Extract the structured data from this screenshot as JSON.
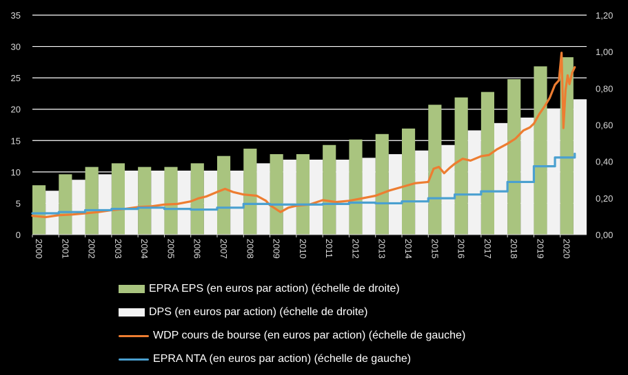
{
  "chart_data": {
    "type": "bar",
    "title": "",
    "x_ticks": [
      "2000",
      "2001",
      "2002",
      "2003",
      "2004",
      "2005",
      "2006",
      "2007",
      "2008",
      "2009",
      "2010",
      "2011",
      "2012",
      "2013",
      "2014",
      "2015",
      "2016",
      "2017",
      "2018",
      "2019",
      "2020"
    ],
    "y_left": {
      "lim": [
        0,
        35
      ],
      "ticks": [
        "0",
        "5",
        "10",
        "15",
        "20",
        "25",
        "30",
        "35"
      ]
    },
    "y_right": {
      "lim": [
        0,
        1.2
      ],
      "ticks": [
        "0,00",
        "0,20",
        "0,40",
        "0,60",
        "0,80",
        "1,00",
        "1,20"
      ]
    },
    "grid": true,
    "legend_position": "bottom",
    "colors": {
      "eps": "#a9c47f",
      "dps": "#f2f2f2",
      "price": "#ed7d31",
      "nta": "#4aa0d0",
      "grid": "#ffffff",
      "axis": "#d9d9d9"
    },
    "series": [
      {
        "name": "EPRA EPS (en euros par action) (échelle de droite)",
        "type": "bar",
        "axis": "right",
        "x": [
          2000,
          2001,
          2002,
          2003,
          2004,
          2005,
          2006,
          2007,
          2008,
          2009,
          2010,
          2011,
          2012,
          2013,
          2014,
          2015,
          2016,
          2017,
          2018,
          2019,
          2020
        ],
        "values": [
          0.27,
          0.33,
          0.37,
          0.39,
          0.37,
          0.37,
          0.39,
          0.43,
          0.47,
          0.44,
          0.44,
          0.49,
          0.52,
          0.55,
          0.58,
          0.71,
          0.75,
          0.78,
          0.85,
          0.92,
          0.97
        ]
      },
      {
        "name": "DPS (en euros par action) (échelle de droite)",
        "type": "bar",
        "axis": "right",
        "x": [
          2000,
          2001,
          2002,
          2003,
          2004,
          2005,
          2006,
          2007,
          2008,
          2009,
          2010,
          2011,
          2012,
          2013,
          2014,
          2015,
          2016,
          2017,
          2018,
          2019,
          2020
        ],
        "values": [
          0.24,
          0.3,
          0.33,
          0.35,
          0.35,
          0.35,
          0.35,
          0.35,
          0.39,
          0.41,
          0.41,
          0.41,
          0.42,
          0.44,
          0.46,
          0.49,
          0.57,
          0.61,
          0.64,
          0.69,
          0.74
        ]
      },
      {
        "name": "WDP cours de bourse (en euros par action) (échelle de gauche)",
        "type": "line",
        "axis": "left",
        "x": [
          2000.0,
          2000.5,
          2001.0,
          2001.5,
          2002.0,
          2002.5,
          2003.0,
          2003.5,
          2004.0,
          2004.5,
          2005.0,
          2005.5,
          2006.0,
          2006.3,
          2006.6,
          2007.0,
          2007.3,
          2007.6,
          2008.0,
          2008.5,
          2008.85,
          2009.0,
          2009.15,
          2009.4,
          2009.7,
          2010.0,
          2010.5,
          2011.0,
          2011.5,
          2012.0,
          2012.5,
          2013.0,
          2013.5,
          2014.0,
          2014.5,
          2015.0,
          2015.2,
          2015.4,
          2015.6,
          2015.8,
          2016.0,
          2016.3,
          2016.6,
          2017.0,
          2017.3,
          2017.6,
          2018.0,
          2018.3,
          2018.6,
          2018.85,
          2019.0,
          2019.2,
          2019.4,
          2019.6,
          2019.8,
          2019.95,
          2020.05,
          2020.12,
          2020.2,
          2020.28,
          2020.35,
          2020.45,
          2020.55
        ],
        "values": [
          3.0,
          2.8,
          3.1,
          3.2,
          3.4,
          3.6,
          3.9,
          4.1,
          4.4,
          4.5,
          4.8,
          4.9,
          5.3,
          5.8,
          6.1,
          6.8,
          7.3,
          6.8,
          6.4,
          6.2,
          5.4,
          4.7,
          4.3,
          3.6,
          4.3,
          4.6,
          4.8,
          5.5,
          5.2,
          5.4,
          5.8,
          6.2,
          7.0,
          7.6,
          8.2,
          8.4,
          10.5,
          10.8,
          9.8,
          10.6,
          11.3,
          12.1,
          11.8,
          12.5,
          12.7,
          13.6,
          14.5,
          15.3,
          16.6,
          17.1,
          17.7,
          19.2,
          20.4,
          21.8,
          23.9,
          24.6,
          29.0,
          17.0,
          23.0,
          25.4,
          24.0,
          25.8,
          26.7
        ]
      },
      {
        "name": "EPRA NTA (en euros par action) (échelle de gauche)",
        "type": "line",
        "axis": "left",
        "x": [
          2000.0,
          2001.0,
          2002.0,
          2003.0,
          2004.0,
          2005.0,
          2006.0,
          2007.0,
          2008.0,
          2009.0,
          2010.0,
          2011.0,
          2012.0,
          2013.0,
          2014.0,
          2015.0,
          2016.0,
          2017.0,
          2018.0,
          2019.0,
          2019.8,
          2020.55
        ],
        "values": [
          3.4,
          3.6,
          3.9,
          4.1,
          4.3,
          4.1,
          4.0,
          4.3,
          4.9,
          4.8,
          4.8,
          4.9,
          5.1,
          5.0,
          5.3,
          5.8,
          6.4,
          6.9,
          8.4,
          10.9,
          12.3,
          12.9
        ]
      }
    ]
  }
}
